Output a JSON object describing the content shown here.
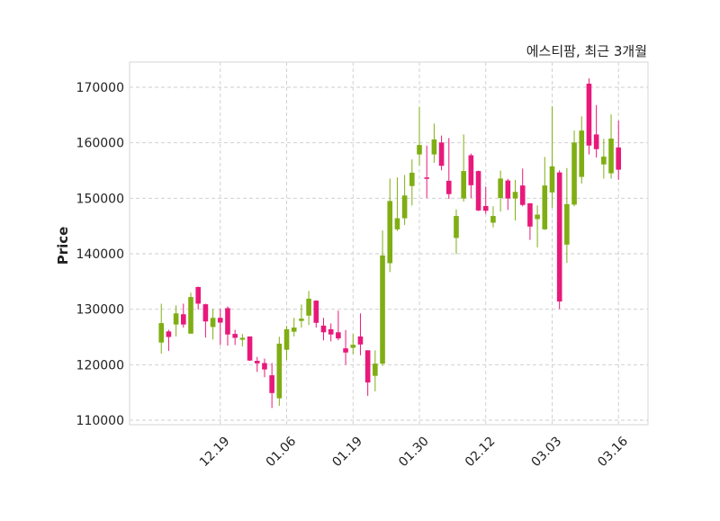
{
  "chart_data": {
    "type": "candlestick",
    "title": "에스티팜, 최근 3개월",
    "xlabel": "",
    "ylabel": "Price",
    "ylim": [
      109190,
      174540
    ],
    "xlim": [
      -4.3,
      66.0
    ],
    "grid": true,
    "yticks": [
      110000,
      120000,
      130000,
      140000,
      150000,
      160000,
      170000
    ],
    "ytick_labels": [
      "110000",
      "120000",
      "130000",
      "140000",
      "150000",
      "160000",
      "170000"
    ],
    "xticks": [
      {
        "index": 8,
        "label": "12.19"
      },
      {
        "index": 17,
        "label": "01.06"
      },
      {
        "index": 26,
        "label": "01.19"
      },
      {
        "index": 35,
        "label": "01.30"
      },
      {
        "index": 44,
        "label": "02.12"
      },
      {
        "index": 53,
        "label": "03.03"
      },
      {
        "index": 62,
        "label": "03.16"
      }
    ],
    "colors": {
      "up": "#7fae14",
      "down": "#e8197a",
      "grid": "#cccccc",
      "frame": "#dddddd"
    },
    "ohlc_columns": [
      "open",
      "high",
      "low",
      "close"
    ],
    "ohlc": [
      [
        124000,
        131000,
        122000,
        127500
      ],
      [
        126000,
        126300,
        122500,
        125000
      ],
      [
        127250,
        130700,
        125100,
        129250
      ],
      [
        129100,
        131000,
        126700,
        127250
      ],
      [
        125600,
        133000,
        125600,
        132200
      ],
      [
        134000,
        134100,
        129950,
        131000
      ],
      [
        130900,
        131000,
        124900,
        127800
      ],
      [
        126800,
        130050,
        124550,
        128450
      ],
      [
        128450,
        130050,
        123550,
        127600
      ],
      [
        130200,
        130500,
        123450,
        125450
      ],
      [
        125550,
        126300,
        123550,
        124850
      ],
      [
        124500,
        125550,
        123300,
        124850
      ],
      [
        125100,
        125100,
        120700,
        120750
      ],
      [
        120700,
        121400,
        118700,
        120250
      ],
      [
        120300,
        121100,
        117750,
        119150
      ],
      [
        118100,
        120300,
        112200,
        114900
      ],
      [
        113950,
        125050,
        112600,
        123800
      ],
      [
        122700,
        127000,
        120850,
        126400
      ],
      [
        125950,
        128450,
        125100,
        126700
      ],
      [
        127900,
        130850,
        126700,
        128300
      ],
      [
        128850,
        133300,
        127150,
        131900
      ],
      [
        131550,
        131600,
        126700,
        127550
      ],
      [
        127050,
        128450,
        124400,
        125850
      ],
      [
        126400,
        127450,
        124200,
        125450
      ],
      [
        125850,
        129750,
        124400,
        124750
      ],
      [
        122950,
        126250,
        120000,
        122200
      ],
      [
        123050,
        125550,
        121950,
        123600
      ],
      [
        125100,
        129250,
        121700,
        123650
      ],
      [
        122600,
        122600,
        114400,
        116800
      ],
      [
        118000,
        122600,
        115200,
        120200
      ],
      [
        120200,
        144200,
        119800,
        139700
      ],
      [
        138300,
        153550,
        136700,
        149500
      ],
      [
        144400,
        153750,
        144100,
        146400
      ],
      [
        146400,
        154200,
        145200,
        150500
      ],
      [
        152200,
        157000,
        148700,
        154600
      ],
      [
        157900,
        166400,
        155900,
        159600
      ],
      [
        153750,
        159500,
        150050,
        153500
      ],
      [
        157900,
        163450,
        156400,
        160600
      ],
      [
        160050,
        161300,
        155050,
        155850
      ],
      [
        153150,
        160850,
        149900,
        150750
      ],
      [
        142850,
        148000,
        139950,
        146800
      ],
      [
        149950,
        161500,
        149400,
        154900
      ],
      [
        157750,
        158050,
        150050,
        152350
      ],
      [
        154900,
        155000,
        147700,
        147800
      ],
      [
        148600,
        152100,
        147200,
        147750
      ],
      [
        145600,
        148550,
        144750,
        146800
      ],
      [
        150050,
        155000,
        147600,
        153550
      ],
      [
        153200,
        153500,
        147900,
        149950
      ],
      [
        149950,
        153300,
        146000,
        151150
      ],
      [
        152300,
        155350,
        148550,
        148800
      ],
      [
        149100,
        149100,
        142500,
        144900
      ],
      [
        146250,
        148700,
        141150,
        147050
      ],
      [
        144400,
        157450,
        144300,
        152300
      ],
      [
        151050,
        166550,
        148300,
        155750
      ],
      [
        154650,
        155050,
        130050,
        131400
      ],
      [
        141650,
        155450,
        138350,
        148950
      ],
      [
        148850,
        162200,
        148550,
        160050
      ],
      [
        153850,
        164750,
        152650,
        162200
      ],
      [
        170650,
        171600,
        157900,
        159500
      ],
      [
        161500,
        166800,
        157350,
        158850
      ],
      [
        156100,
        160700,
        153550,
        157500
      ],
      [
        154500,
        165100,
        153550,
        160750
      ],
      [
        159150,
        164000,
        153300,
        155150
      ]
    ]
  }
}
